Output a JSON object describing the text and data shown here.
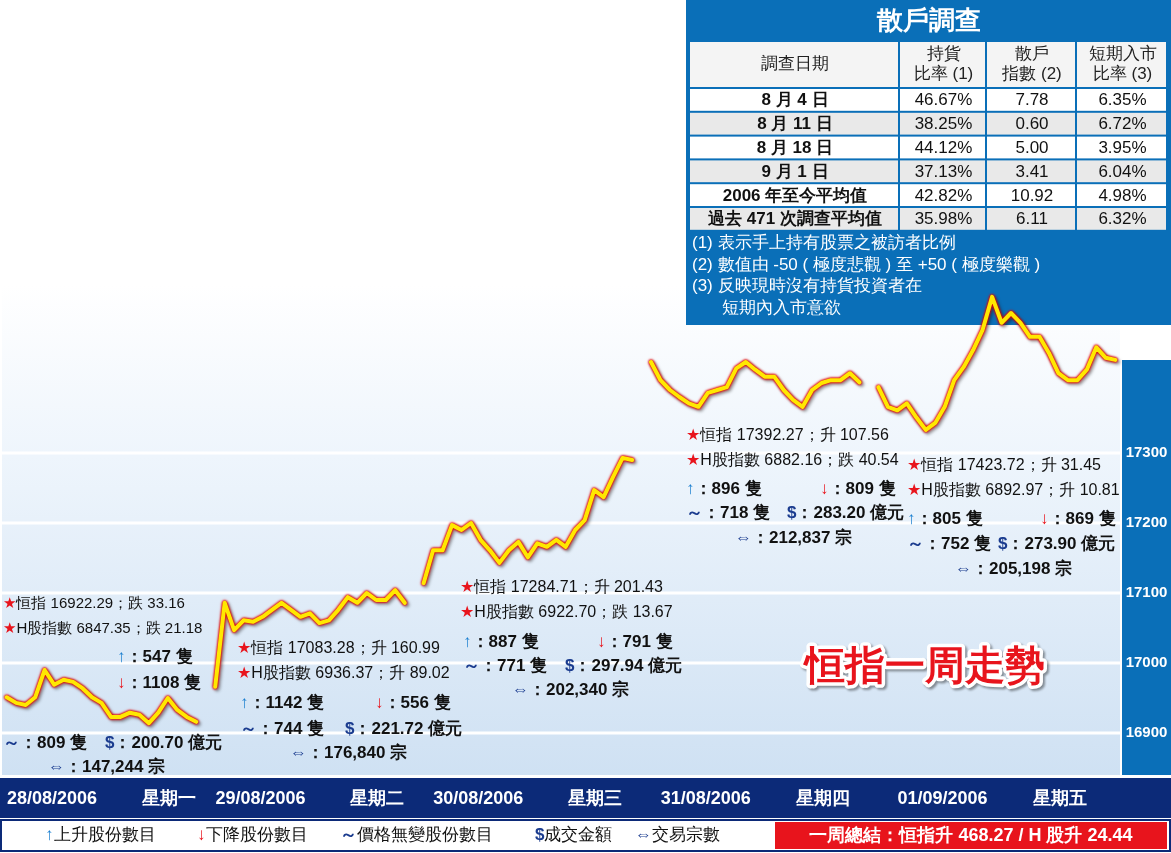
{
  "chart_data": [
    {
      "type": "line",
      "title": "恒指一周走勢",
      "categories": [
        null,
        null,
        null,
        null,
        null,
        null,
        null,
        null,
        null,
        null,
        "28/08/2006 星期一",
        null,
        null,
        null,
        null,
        null,
        null,
        null,
        null,
        null,
        null,
        null,
        null,
        null,
        null,
        null,
        null,
        null,
        null,
        null,
        null,
        null,
        "29/08/2006 星期二",
        null,
        null,
        null,
        null,
        null,
        null,
        null,
        null,
        null,
        null,
        null,
        null,
        null,
        null,
        null,
        null,
        null,
        null,
        null,
        null,
        null,
        null,
        "30/08/2006 星期三",
        null,
        null,
        null,
        null,
        null,
        null,
        null,
        null,
        null,
        null,
        null,
        null,
        null,
        null,
        null,
        null,
        null,
        null,
        null,
        null,
        null,
        null,
        null,
        "31/08/2006 星期四",
        null,
        null,
        null,
        null,
        null,
        null,
        null,
        null,
        null,
        null,
        null,
        null,
        null,
        null,
        null,
        null,
        null,
        null,
        null,
        null,
        null,
        null,
        null,
        null,
        "01/09/2006 星期五",
        null,
        null,
        null,
        null,
        null,
        null,
        null,
        null,
        null,
        null,
        null,
        null,
        null
      ],
      "series": [
        {
          "color": "#ffe800",
          "values": [
            16951,
            16943,
            16940,
            16951,
            16990,
            16969,
            16976,
            16973,
            16964,
            16951,
            16943,
            16923,
            16923,
            16929,
            16926,
            16914,
            16929,
            16950,
            16933,
            16923,
            16916,
            null,
            16966,
            17086,
            17047,
            17061,
            17059,
            17066,
            17076,
            17086,
            17076,
            17066,
            17071,
            17057,
            17061,
            17076,
            17094,
            17086,
            17100,
            17090,
            17090,
            17104,
            17086,
            null,
            17114,
            17161,
            17161,
            17197,
            17190,
            17200,
            17176,
            17161,
            17143,
            17161,
            17173,
            17151,
            17171,
            17166,
            17176,
            17166,
            17190,
            17204,
            17247,
            17237,
            17266,
            17293,
            17290,
            null,
            17430,
            17404,
            17390,
            17380,
            17371,
            17366,
            17386,
            17390,
            17394,
            17421,
            17430,
            17419,
            17409,
            17409,
            17390,
            17376,
            17366,
            17390,
            17400,
            17404,
            17404,
            17414,
            17401,
            null,
            17394,
            17366,
            17361,
            17371,
            17351,
            17333,
            17343,
            17366,
            17404,
            17423,
            17447,
            17476,
            17523,
            17486,
            17500,
            17486,
            17466,
            17466,
            17443,
            17414,
            17404,
            17404,
            17419,
            17451,
            17436,
            17433
          ]
        }
      ],
      "ylim": [
        16840,
        17540
      ],
      "yticks": [
        16900,
        17000,
        17100,
        17200,
        17300
      ],
      "grid": "y",
      "annotations": [
        "★恒指 16922.29；跌 33.16",
        "★H股指數 6847.35；跌 21.18",
        "↑：547 隻",
        "↓：1108 隻",
        "～：809 隻",
        "$：200.70 億元",
        "⇔：147,244 宗",
        "★恒指 17083.28；升 160.99",
        "★H股指數 6936.37；升 89.02",
        "↑：1142 隻",
        "↓：556 隻",
        "～：744 隻",
        "$：221.72 億元",
        "⇔：176,840 宗",
        "★恒指 17284.71；升 201.43",
        "★H股指數 6922.70；跌 13.67",
        "↑：887 隻",
        "↓：791 隻",
        "～：771 隻",
        "$：297.94 億元",
        "⇔：202,340 宗",
        "★恒指 17392.27；升 107.56",
        "★H股指數 6882.16；跌 40.54",
        "↑：896 隻",
        "↓：809 隻",
        "～：718 隻",
        "$：283.20 億元",
        "⇔：212,837 宗",
        "★恒指 17423.72；升 31.45",
        "★H股指數 6892.97；升 10.81",
        "↑：805 隻",
        "↓：869 隻",
        "～：752 隻",
        "$：273.90 億元",
        "⇔：205,198 宗",
        "↑上升股份數目",
        "↓下降股份數目",
        "～價格無變股份數目",
        "$成交金額",
        "⇔交易宗數",
        "一周總結：恒指升 468.27 / H 股升 24.44"
      ]
    },
    {
      "type": "other",
      "title": "散戶調查",
      "categories": [
        "調查日期",
        "持貨比率 (1)",
        "散戶指數 (2)",
        "短期入市比率 (3)"
      ],
      "y_categories": [
        "8 月 4 日",
        "8 月 11 日",
        "8 月 18 日",
        "9 月 1 日",
        "2006 年至今平均值",
        "過去 471 次調查平均值"
      ],
      "cell_labels": [
        [
          "46.67%",
          "7.78",
          "6.35%"
        ],
        [
          "38.25%",
          "0.60",
          "6.72%"
        ],
        [
          "44.12%",
          "5.00",
          "3.95%"
        ],
        [
          "37.13%",
          "3.41",
          "6.04%"
        ],
        [
          "42.82%",
          "10.92",
          "4.98%"
        ],
        [
          "35.98%",
          "6.11",
          "6.32%"
        ]
      ],
      "annotations": [
        "(1) 表示手上持有股票之被訪者比例",
        "(2) 數值由 -50 ( 極度悲觀 ) 至 +50 ( 極度樂觀 )",
        "(3) 反映現時沒有持貨投資者在短期內入市意欲"
      ]
    }
  ]
}
